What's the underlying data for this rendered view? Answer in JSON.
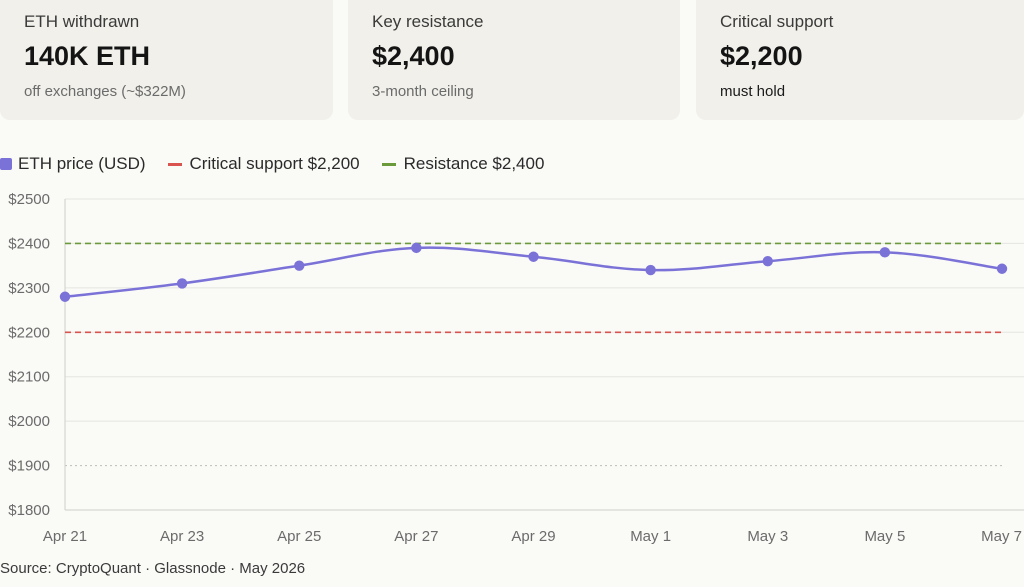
{
  "cards": [
    {
      "label": "ETH withdrawn",
      "value": "140K ETH",
      "sub": "off exchanges (~$322M)"
    },
    {
      "label": "Key resistance",
      "value": "$2,400",
      "sub": "3-month ceiling"
    },
    {
      "label": "Critical support",
      "value": "$2,200",
      "sub": "must hold"
    }
  ],
  "legend": {
    "price": "ETH price (USD)",
    "support": "Critical support $2,200",
    "resistance": "Resistance $2,400"
  },
  "colors": {
    "price": "#7b72d8",
    "support": "#d9534f",
    "resistance": "#6a9a3a",
    "grid": "#e4e4e0",
    "dotted": "#bdbdbd"
  },
  "chart_data": {
    "type": "line",
    "x": [
      "Apr 21",
      "Apr 23",
      "Apr 25",
      "Apr 27",
      "Apr 29",
      "May 1",
      "May 3",
      "May 5",
      "May 7"
    ],
    "series": [
      {
        "name": "ETH price (USD)",
        "values": [
          2280,
          2310,
          2350,
          2390,
          2370,
          2340,
          2360,
          2380,
          2343
        ]
      }
    ],
    "reference_lines": [
      {
        "name": "Critical support $2,200",
        "value": 2200,
        "style": "dashed"
      },
      {
        "name": "Resistance $2,400",
        "value": 2400,
        "style": "dashed"
      }
    ],
    "yticks": [
      "$2500",
      "$2400",
      "$2300",
      "$2200",
      "$2100",
      "$2000",
      "$1900",
      "$1800"
    ],
    "ylim": [
      1800,
      2500
    ],
    "grid": true,
    "legend": "top-left"
  },
  "source": "Source: CryptoQuant · Glassnode · May 2026"
}
